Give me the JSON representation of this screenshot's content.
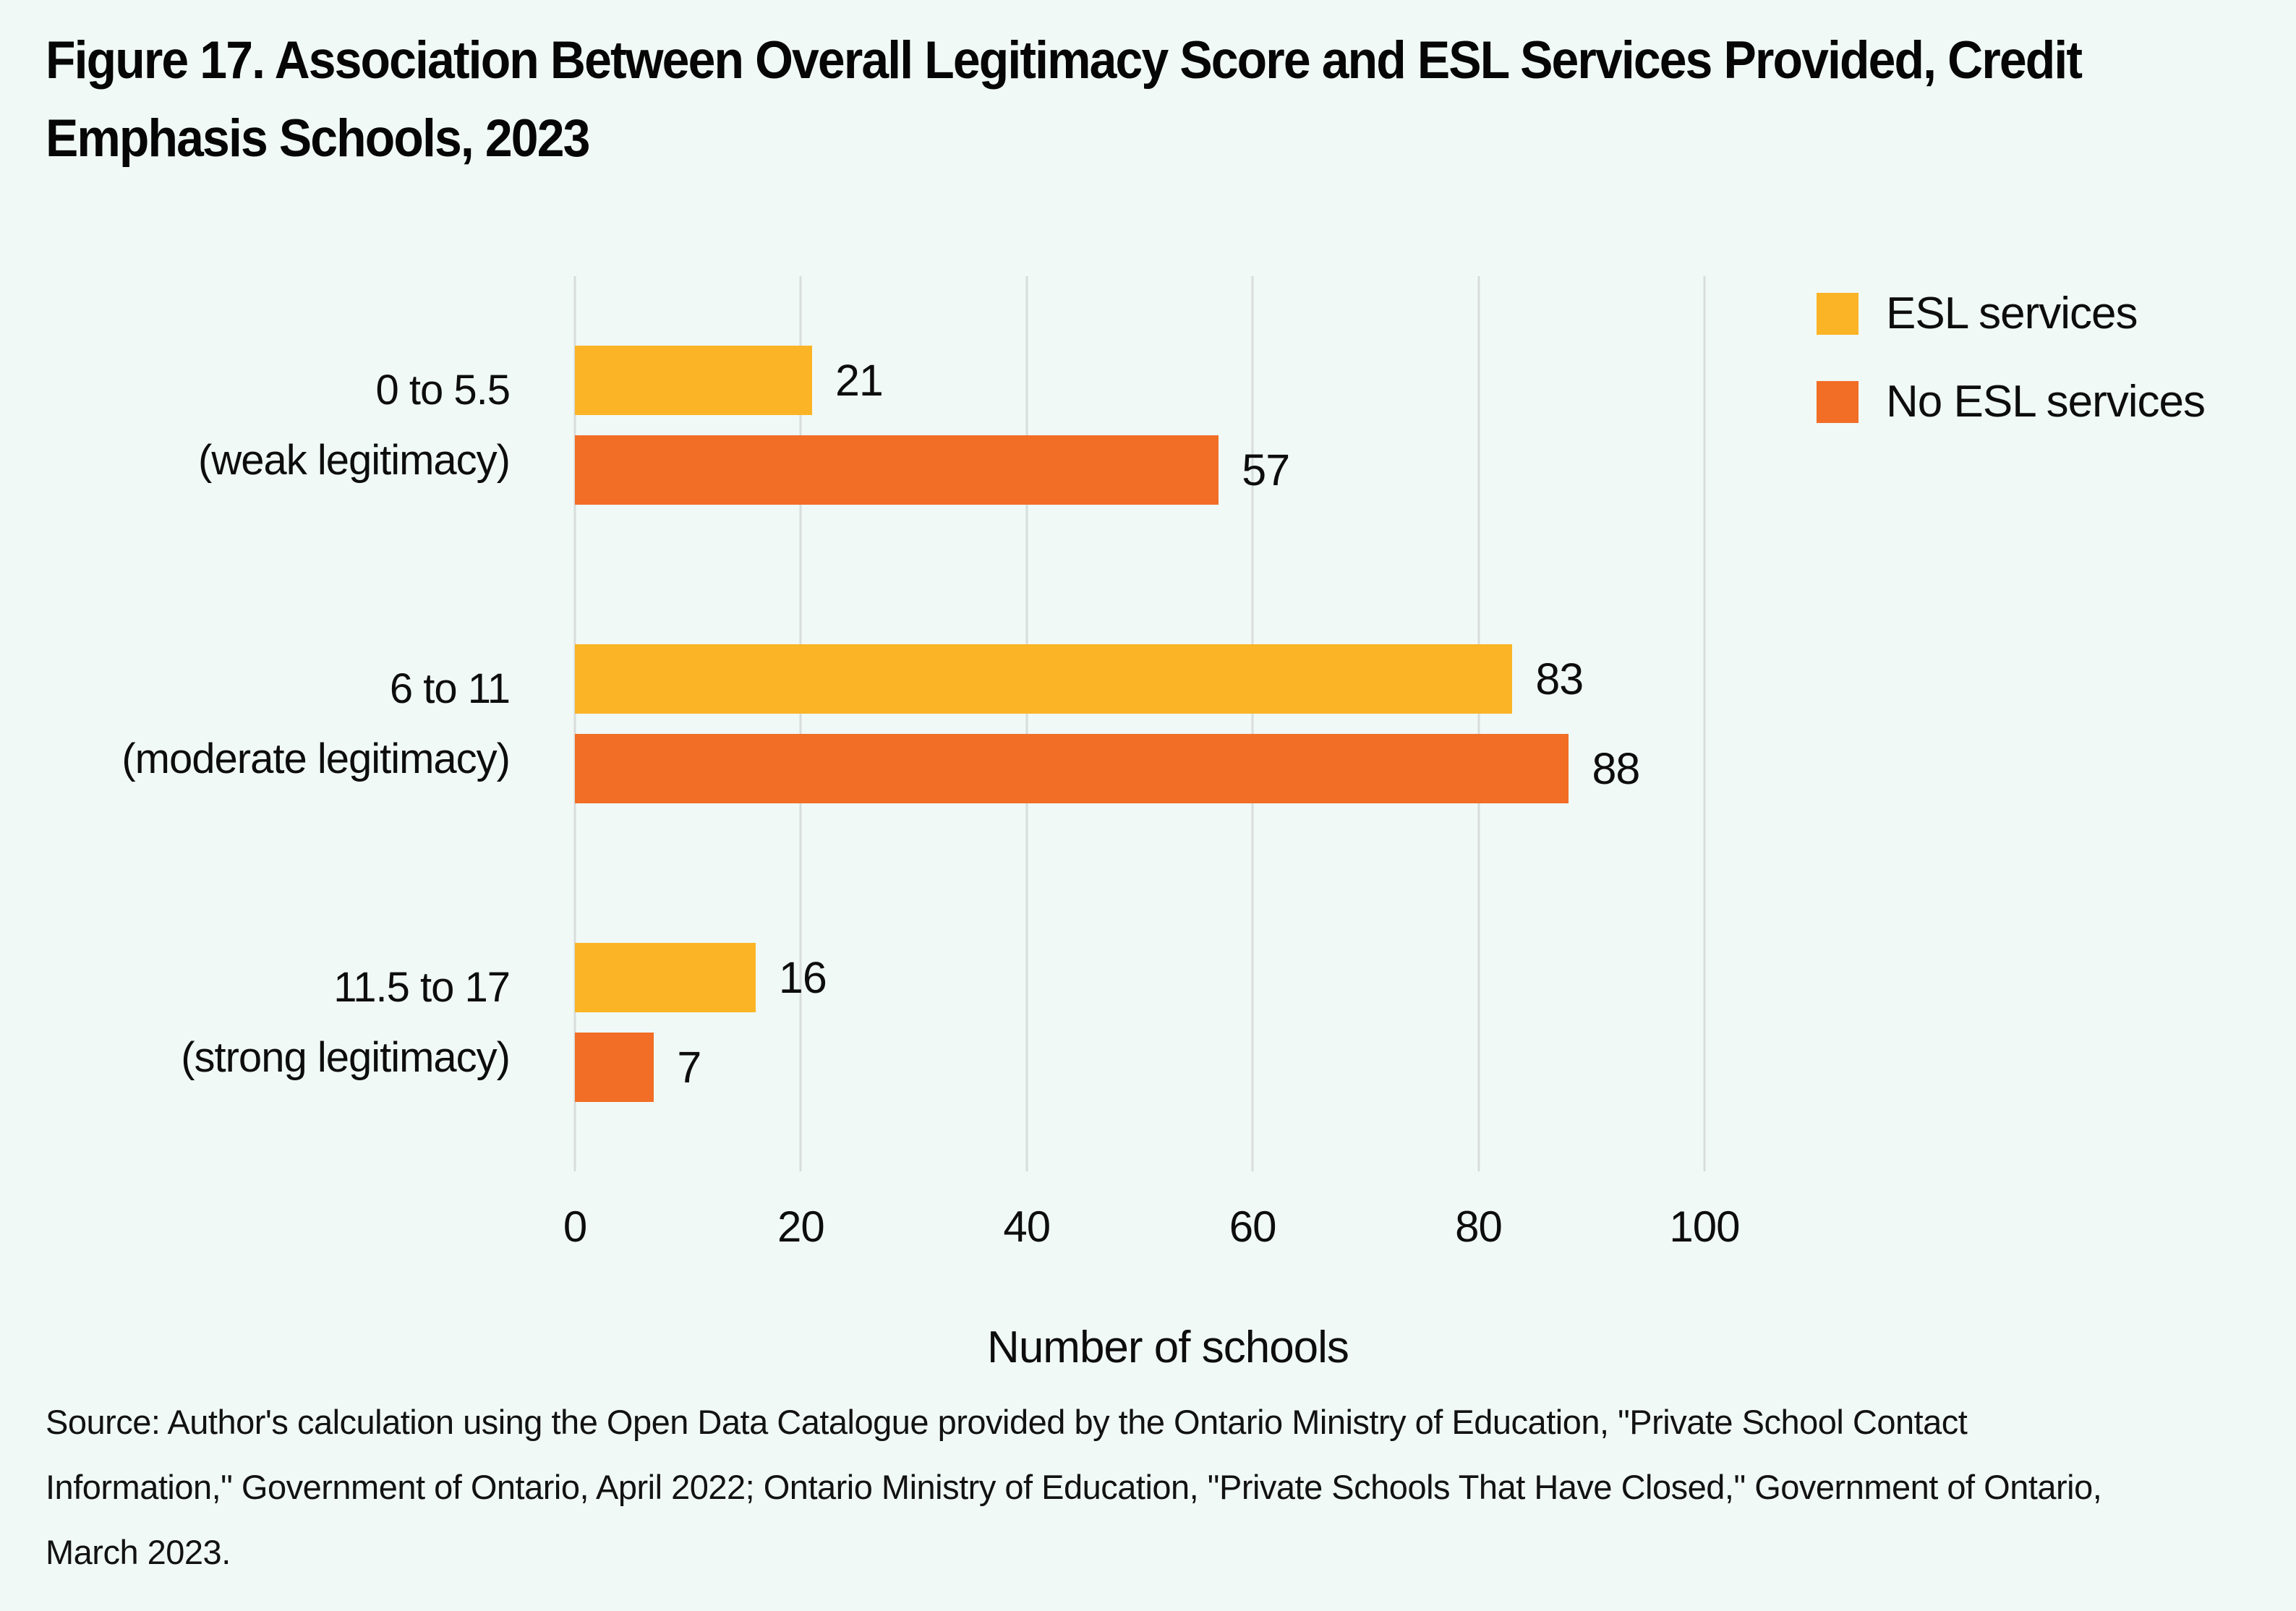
{
  "title": "Figure 17. Association Between Overall Legitimacy Score and ESL Services Provided, Credit Emphasis Schools, 2023",
  "source": "Source: Author's calculation using the Open Data Catalogue provided by the Ontario Ministry of Education, \"Private School Contact Information,\" Government of Ontario, April 2022; Ontario Ministry of Education, \"Private Schools That Have Closed,\" Government of Ontario, March 2023.",
  "colors": {
    "background": "#F0F9F6",
    "gridline": "#D8DDDB",
    "text": "#0d0d0d",
    "esl_services": "#FBB426",
    "no_esl_services": "#F26D26"
  },
  "chart_data": {
    "type": "bar",
    "orientation": "horizontal",
    "title": "Figure 17. Association Between Overall Legitimacy Score and ESL Services Provided, Credit Emphasis Schools, 2023",
    "categories": [
      "0 to 5.5\n(weak legitimacy)",
      "6 to 11\n(moderate legitimacy)",
      "11.5 to 17\n(strong legitimacy)"
    ],
    "series": [
      {
        "name": "ESL services",
        "color": "#FBB426",
        "values": [
          21,
          83,
          16
        ]
      },
      {
        "name": "No ESL services",
        "color": "#F26D26",
        "values": [
          57,
          88,
          7
        ]
      }
    ],
    "xlabel": "Number of schools",
    "xlim": [
      0,
      105
    ],
    "xticks": [
      0,
      20,
      40,
      60,
      80,
      100
    ],
    "grid": "vertical",
    "legend_position": "top-right",
    "bar_value_labels": true
  }
}
